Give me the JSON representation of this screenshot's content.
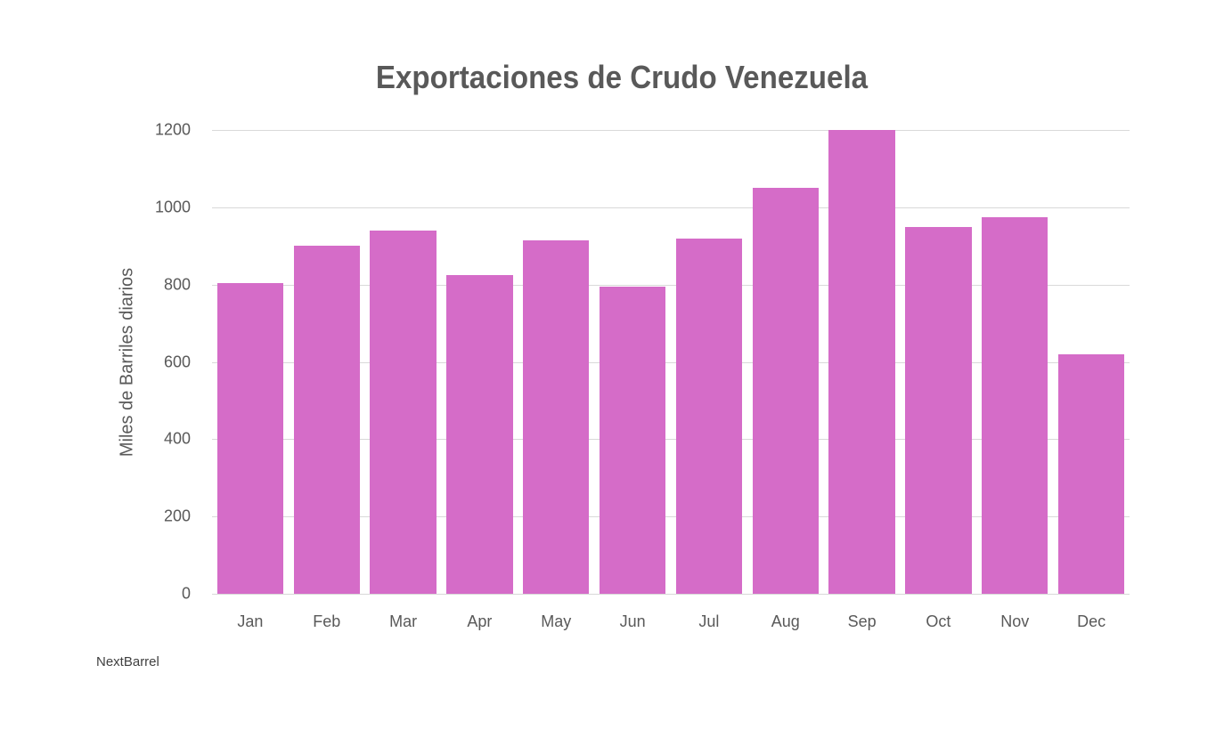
{
  "chart_data": {
    "type": "bar",
    "title": "Exportaciones de Crudo Venezuela",
    "xlabel": "",
    "ylabel": "Miles de Barriles diarios",
    "categories": [
      "Jan",
      "Feb",
      "Mar",
      "Apr",
      "May",
      "Jun",
      "Jul",
      "Aug",
      "Sep",
      "Oct",
      "Nov",
      "Dec"
    ],
    "values": [
      805,
      900,
      940,
      825,
      915,
      795,
      920,
      1050,
      1200,
      950,
      975,
      620
    ],
    "ylim": [
      0,
      1200
    ],
    "yticks": [
      0,
      200,
      400,
      600,
      800,
      1000,
      1200
    ],
    "grid": true,
    "legend": null,
    "bar_color": "#d56cc8",
    "source": "NextBarrel"
  },
  "labels": {
    "title": "Exportaciones de Crudo Venezuela",
    "ylabel": "Miles de Barriles diarios",
    "source": "NextBarrel",
    "yticks": [
      "0",
      "200",
      "400",
      "600",
      "800",
      "1000",
      "1200"
    ],
    "categories": [
      "Jan",
      "Feb",
      "Mar",
      "Apr",
      "May",
      "Jun",
      "Jul",
      "Aug",
      "Sep",
      "Oct",
      "Nov",
      "Dec"
    ]
  },
  "colors": {
    "bar": "#d56cc8",
    "grid": "#d9d9d9",
    "text": "#595959"
  }
}
